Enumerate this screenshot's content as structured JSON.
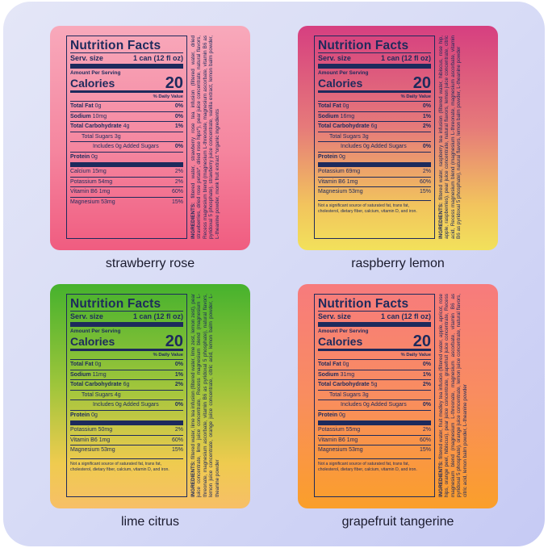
{
  "labels": [
    {
      "name": "strawberry rose",
      "title": "Nutrition Facts",
      "serving_label": "Serv. size",
      "serving": "1 can (12 fl oz)",
      "amount_label": "Amount Per Serving",
      "calories_label": "Calories",
      "calories": 20,
      "dv_header": "% Daily Value",
      "rows": [
        {
          "nutrient": "Total Fat",
          "amount": "0g",
          "dv": "0%",
          "bold": true,
          "indent": 0
        },
        {
          "nutrient": "Sodium",
          "amount": "10mg",
          "dv": "0%",
          "bold": true,
          "indent": 0
        },
        {
          "nutrient": "Total Carbohydrate",
          "amount": "4g",
          "dv": "1%",
          "bold": true,
          "indent": 0
        },
        {
          "nutrient": "Total Sugars",
          "amount": "3g",
          "bold": false,
          "indent": 1
        },
        {
          "nutrient": "Includes 0g Added Sugars",
          "dv": "0%",
          "bold": false,
          "indent": 2
        },
        {
          "nutrient": "Protein",
          "amount": "0g",
          "bold": true,
          "indent": 0
        }
      ],
      "minerals": [
        {
          "nutrient": "Calcium",
          "amount": "15mg",
          "dv": "2%"
        },
        {
          "nutrient": "Potassium",
          "amount": "54mg",
          "dv": "2%"
        },
        {
          "nutrient": "Vitamin B6",
          "amount": "1mg",
          "dv": "60%"
        },
        {
          "nutrient": "Magnesium",
          "amount": "53mg",
          "dv": "15%"
        }
      ],
      "ingredients_label": "INGREDIENTS:",
      "ingredients": "filtered water, strawberry rose tea infusion (filtered water, dried strawberries, dried rose petals*, dried rose hips*), pear juice concentrate, natural flavors, Recess magnesium blend (magnesium L-threonate, magnesium ascorbate, vitamin B6 as pyridoxal 5 phosphate), strawberry juice concentrate, vanilla extract, lemon balm powder, L-theanine powder, monk fruit extract *organic ingredients"
    },
    {
      "name": "raspberry lemon",
      "title": "Nutrition Facts",
      "serving_label": "Serv. size",
      "serving": "1 can (12 fl oz)",
      "amount_label": "Amount Per Serving",
      "calories_label": "Calories",
      "calories": 20,
      "dv_header": "% Daily Value",
      "rows": [
        {
          "nutrient": "Total Fat",
          "amount": "0g",
          "dv": "0%",
          "bold": true,
          "indent": 0
        },
        {
          "nutrient": "Sodium",
          "amount": "16mg",
          "dv": "1%",
          "bold": true,
          "indent": 0
        },
        {
          "nutrient": "Total Carbohydrate",
          "amount": "6g",
          "dv": "2%",
          "bold": true,
          "indent": 0
        },
        {
          "nutrient": "Total Sugars",
          "amount": "3g",
          "bold": false,
          "indent": 1
        },
        {
          "nutrient": "Includes 0g Added Sugars",
          "dv": "0%",
          "bold": false,
          "indent": 2
        },
        {
          "nutrient": "Protein",
          "amount": "0g",
          "bold": true,
          "indent": 0
        }
      ],
      "minerals": [
        {
          "nutrient": "Potassium",
          "amount": "69mg",
          "dv": "2%"
        },
        {
          "nutrient": "Vitamin B6",
          "amount": "1mg",
          "dv": "60%"
        },
        {
          "nutrient": "Magnesium",
          "amount": "53mg",
          "dv": "15%"
        }
      ],
      "footnote": "Not a significant source of saturated fat, trans fat, cholesterol, dietary fiber, calcium, vitamin D, and iron.",
      "ingredients_label": "INGREDIENTS:",
      "ingredients": "filtered water, raspberry tea infusion (filtered water, hibiscus, rose hip, apple, raspberries), pear juice concentrate, natural flavors, lemon juice concentrate, citric acid, Recess magnesium blend (magnesium L-threonate, magnesium ascorbate, vitamin B6 as pyridoxal 5 phosphate), natural flavors, lemon balm powder, L-theanine powder"
    },
    {
      "name": "lime citrus",
      "title": "Nutrition Facts",
      "serving_label": "Serv. size",
      "serving": "1 can (12 fl oz)",
      "amount_label": "Amount Per Serving",
      "calories_label": "Calories",
      "calories": 20,
      "dv_header": "% Daily Value",
      "rows": [
        {
          "nutrient": "Total Fat",
          "amount": "0g",
          "dv": "0%",
          "bold": true,
          "indent": 0
        },
        {
          "nutrient": "Sodium",
          "amount": "11mg",
          "dv": "1%",
          "bold": true,
          "indent": 0
        },
        {
          "nutrient": "Total Carbohydrate",
          "amount": "6g",
          "dv": "2%",
          "bold": true,
          "indent": 0
        },
        {
          "nutrient": "Total Sugars",
          "amount": "4g",
          "bold": false,
          "indent": 1
        },
        {
          "nutrient": "Includes 0g Added Sugars",
          "dv": "0%",
          "bold": false,
          "indent": 2
        },
        {
          "nutrient": "Protein",
          "amount": "0g",
          "bold": true,
          "indent": 0
        }
      ],
      "minerals": [
        {
          "nutrient": "Potassium",
          "amount": "50mg",
          "dv": "2%"
        },
        {
          "nutrient": "Vitamin B6",
          "amount": "1mg",
          "dv": "60%"
        },
        {
          "nutrient": "Magnesium",
          "amount": "53mg",
          "dv": "15%"
        }
      ],
      "footnote": "Not a significant source of saturated fat, trans fat, cholesterol, dietary fiber, calcium, vitamin D, and iron.",
      "ingredients_label": "INGREDIENTS:",
      "ingredients": "filtered water, lime tea infusion (filtered water, lime zest, lemon zest), pear juice concentrate, lime juice concentrate, Recess magnesium blend (magnesium L-threonate, magnesium ascorbate, vitamin B6 as pyridoxal 5 phosphate), natural flavors, lemon juice concentrate, orange juice concentrate, citric acid, lemon balm powder, L-theanine powder"
    },
    {
      "name": "grapefruit tangerine",
      "title": "Nutrition Facts",
      "serving_label": "Serv. size",
      "serving": "1 can (12 fl oz)",
      "amount_label": "Amount Per Serving",
      "calories_label": "Calories",
      "calories": 20,
      "dv_header": "% Daily Value",
      "rows": [
        {
          "nutrient": "Total Fat",
          "amount": "0g",
          "dv": "0%",
          "bold": true,
          "indent": 0
        },
        {
          "nutrient": "Sodium",
          "amount": "31mg",
          "dv": "1%",
          "bold": true,
          "indent": 0
        },
        {
          "nutrient": "Total Carbohydrate",
          "amount": "5g",
          "dv": "2%",
          "bold": true,
          "indent": 0
        },
        {
          "nutrient": "Total Sugars",
          "amount": "3g",
          "bold": false,
          "indent": 1
        },
        {
          "nutrient": "Includes 0g Added Sugars",
          "dv": "0%",
          "bold": false,
          "indent": 2
        },
        {
          "nutrient": "Protein",
          "amount": "0g",
          "bold": true,
          "indent": 0
        }
      ],
      "minerals": [
        {
          "nutrient": "Potassium",
          "amount": "55mg",
          "dv": "2%"
        },
        {
          "nutrient": "Vitamin B6",
          "amount": "1mg",
          "dv": "60%"
        },
        {
          "nutrient": "Magnesium",
          "amount": "53mg",
          "dv": "15%"
        }
      ],
      "footnote": "Not a significant source of saturated fat, trans fat, cholesterol, dietary fiber, calcium, vitamin D, and iron.",
      "ingredients_label": "INGREDIENTS:",
      "ingredients": "filtered water, fruit medley tea infusion (filtered water, apple, apricot, rose hips, orange peel, hibiscus), pear juice concentrate, grapefruit juice concentrate, Recess magnesium blend (magnesium L-threonate, magnesium ascorbate, vitamin B6 as pyridoxal 5 phosphate), orange juice concentrate, lemon juice concentrate, natural flavors, citric acid, lemon balm powder, L-theanine powder"
    }
  ]
}
